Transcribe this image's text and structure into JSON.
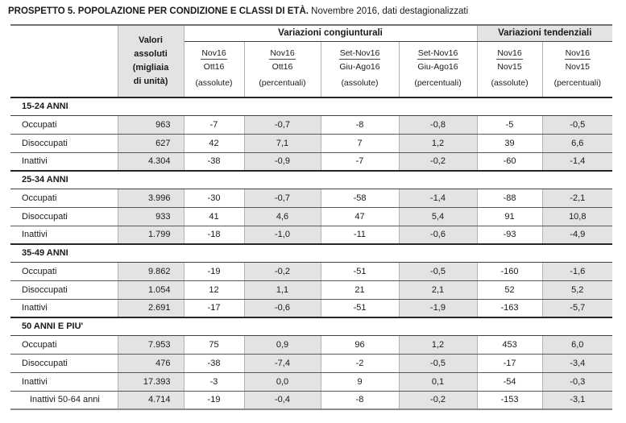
{
  "title": {
    "main": "PROSPETTO 5. POPOLAZIONE PER CONDIZIONE E CLASSI DI ETÀ.",
    "subtitle": "Novembre 2016, dati destagionalizzati"
  },
  "colors": {
    "shaded_column": "#e3e3e3",
    "text": "#1a1a1a",
    "heavy_rule": "#262626",
    "light_rule": "#b3b3b3"
  },
  "header": {
    "valori": "Valori\nassoluti\n(migliaia\ndi unità)",
    "group_congiunturali": "Variazioni congiunturali",
    "group_tendenziali": "Variazioni tendenziali",
    "subcols": [
      {
        "num": "Nov16",
        "den": "Ott16",
        "kind": "(assolute)"
      },
      {
        "num": "Nov16",
        "den": "Ott16",
        "kind": "(percentuali)"
      },
      {
        "num": "Set-Nov16",
        "den": "Giu-Ago16",
        "kind": "(assolute)"
      },
      {
        "num": "Set-Nov16",
        "den": "Giu-Ago16",
        "kind": "(percentuali)"
      },
      {
        "num": "Nov16",
        "den": "Nov15",
        "kind": "(assolute)"
      },
      {
        "num": "Nov16",
        "den": "Nov15",
        "kind": "(percentuali)"
      }
    ]
  },
  "table": {
    "groups": [
      {
        "label": "15-24 ANNI",
        "rows": [
          {
            "label": "Occupati",
            "indent": false,
            "values": [
              "963",
              "-7",
              "-0,7",
              "-8",
              "-0,8",
              "-5",
              "-0,5"
            ]
          },
          {
            "label": "Disoccupati",
            "indent": false,
            "values": [
              "627",
              "42",
              "7,1",
              "7",
              "1,2",
              "39",
              "6,6"
            ]
          },
          {
            "label": "Inattivi",
            "indent": false,
            "values": [
              "4.304",
              "-38",
              "-0,9",
              "-7",
              "-0,2",
              "-60",
              "-1,4"
            ]
          }
        ]
      },
      {
        "label": "25-34 ANNI",
        "rows": [
          {
            "label": "Occupati",
            "indent": false,
            "values": [
              "3.996",
              "-30",
              "-0,7",
              "-58",
              "-1,4",
              "-88",
              "-2,1"
            ]
          },
          {
            "label": "Disoccupati",
            "indent": false,
            "values": [
              "933",
              "41",
              "4,6",
              "47",
              "5,4",
              "91",
              "10,8"
            ]
          },
          {
            "label": "Inattivi",
            "indent": false,
            "values": [
              "1.799",
              "-18",
              "-1,0",
              "-11",
              "-0,6",
              "-93",
              "-4,9"
            ]
          }
        ]
      },
      {
        "label": "35-49 ANNI",
        "rows": [
          {
            "label": "Occupati",
            "indent": false,
            "values": [
              "9.862",
              "-19",
              "-0,2",
              "-51",
              "-0,5",
              "-160",
              "-1,6"
            ]
          },
          {
            "label": "Disoccupati",
            "indent": false,
            "values": [
              "1.054",
              "12",
              "1,1",
              "21",
              "2,1",
              "52",
              "5,2"
            ]
          },
          {
            "label": "Inattivi",
            "indent": false,
            "values": [
              "2.691",
              "-17",
              "-0,6",
              "-51",
              "-1,9",
              "-163",
              "-5,7"
            ]
          }
        ]
      },
      {
        "label": "50 ANNI E PIU'",
        "rows": [
          {
            "label": "Occupati",
            "indent": false,
            "values": [
              "7.953",
              "75",
              "0,9",
              "96",
              "1,2",
              "453",
              "6,0"
            ]
          },
          {
            "label": "Disoccupati",
            "indent": false,
            "values": [
              "476",
              "-38",
              "-7,4",
              "-2",
              "-0,5",
              "-17",
              "-3,4"
            ]
          },
          {
            "label": "Inattivi",
            "indent": false,
            "values": [
              "17.393",
              "-3",
              "0,0",
              "9",
              "0,1",
              "-54",
              "-0,3"
            ]
          },
          {
            "label": "Inattivi 50-64 anni",
            "indent": true,
            "values": [
              "4.714",
              "-19",
              "-0,4",
              "-8",
              "-0,2",
              "-153",
              "-3,1"
            ]
          }
        ]
      }
    ]
  }
}
